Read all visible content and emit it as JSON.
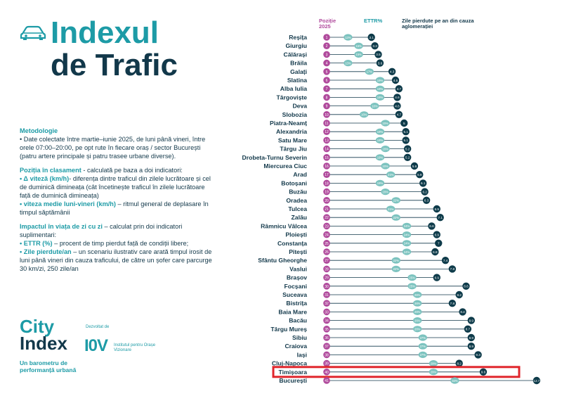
{
  "title": {
    "line1": "Indexul",
    "line2": "de Trafic"
  },
  "methodology": {
    "heading": "Metodologie",
    "text": "• Date colectate între martie–iunie 2025, de luni până vineri, între orele 07:00–20:00, pe opt rute în fiecare oraș / sector București (patru artere principale și patru trasee urbane diverse)."
  },
  "ranking": {
    "heading": "Poziția în clasament",
    "intro": " - calculată pe baza a doi indicatori:",
    "i1_label": "• Δ viteză (km/h)",
    "i1_text": "- diferența dintre traficul din zilele lucrătoare și cel de duminică dimineața (cât încetinește traficul în zilele lucrătoare față de duminică dimineața)",
    "i2_label": "• viteza medie luni-vineri (km/h)",
    "i2_text": " – ritmul general de deplasare în timpul săptămânii"
  },
  "impact": {
    "heading": "Impactul în viața de zi cu zi",
    "intro": " – calculat prin doi indicatori suplimentari:",
    "i1_label": "• ETTR (%)",
    "i1_text": " – procent de timp pierdut față de condiții libere;",
    "i2_label": "• Zile pierdute/an",
    "i2_text": " – un scenariu ilustrativ care arată timpul irosit de luni până vineri din cauza traficului, de către un șofer care parcurge 30 km/zi, 250 zile/an"
  },
  "branding": {
    "logo_l1": "City",
    "logo_l2": "Index",
    "tagline": "Un barometru de performanță urbană",
    "developed_by": "Dezvoltat de",
    "partner_mark": "I0V",
    "partner_name": "Institutul pentru Orașe Vizionare"
  },
  "colors": {
    "teal": "#1d9ba6",
    "navy": "#12384a",
    "purple": "#b04a9c",
    "ettr": "#7cc3bf",
    "days": "#0e3b4a",
    "highlight": "#e0262c"
  },
  "chart_data": {
    "type": "dot-range",
    "headers": {
      "position": "Poziție 2025",
      "ettr": "ETTR%",
      "days": "Zile pierdute pe an din cauza aglomerației"
    },
    "highlight": "Timișoara",
    "rows": [
      {
        "pos": 1,
        "city": "Reșița",
        "ettr": "13%",
        "days": 3.1
      },
      {
        "pos": 2,
        "city": "Giurgiu",
        "ettr": "15%",
        "days": 3.3
      },
      {
        "pos": 3,
        "city": "Călărași",
        "ettr": "15%",
        "days": 3.5
      },
      {
        "pos": 4,
        "city": "Brăila",
        "ettr": "13%",
        "days": 3.6
      },
      {
        "pos": 5,
        "city": "Galați",
        "ettr": "17%",
        "days": 4.3
      },
      {
        "pos": 6,
        "city": "Slatina",
        "ettr": "19%",
        "days": 4.5
      },
      {
        "pos": 7,
        "city": "Alba Iulia",
        "ettr": "19%",
        "days": 4.7
      },
      {
        "pos": 8,
        "city": "Târgoviște",
        "ettr": "19%",
        "days": 4.6
      },
      {
        "pos": 9,
        "city": "Deva",
        "ettr": "18%",
        "days": 4.6
      },
      {
        "pos": 10,
        "city": "Slobozia",
        "ettr": "16%",
        "days": 4.7
      },
      {
        "pos": 11,
        "city": "Piatra-Neamț",
        "ettr": "20%",
        "days": 5
      },
      {
        "pos": 12,
        "city": "Alexandria",
        "ettr": "19%",
        "days": 5.1
      },
      {
        "pos": 13,
        "city": "Satu Mare",
        "ettr": "19%",
        "days": 5.1
      },
      {
        "pos": 14,
        "city": "Târgu Jiu",
        "ettr": "20%",
        "days": 5.2
      },
      {
        "pos": 15,
        "city": "Drobeta-Turnu Severin",
        "ettr": "19%",
        "days": 5.2
      },
      {
        "pos": 16,
        "city": "Miercurea Ciuc",
        "ettr": "20%",
        "days": 5.6
      },
      {
        "pos": 17,
        "city": "Arad",
        "ettr": "21%",
        "days": 5.9
      },
      {
        "pos": 18,
        "city": "Botoșani",
        "ettr": "19%",
        "days": 6.1
      },
      {
        "pos": 19,
        "city": "Buzău",
        "ettr": "20%",
        "days": 6.2
      },
      {
        "pos": 20,
        "city": "Oradea",
        "ettr": "22%",
        "days": 6.3
      },
      {
        "pos": 21,
        "city": "Tulcea",
        "ettr": "21%",
        "days": 6.9
      },
      {
        "pos": 22,
        "city": "Zalău",
        "ettr": "22%",
        "days": 7.1
      },
      {
        "pos": 23,
        "city": "Râmnicu Vâlcea",
        "ettr": "24%",
        "days": 6.6
      },
      {
        "pos": 24,
        "city": "Ploiești",
        "ettr": "24%",
        "days": 6.9
      },
      {
        "pos": 25,
        "city": "Constanța",
        "ettr": "24%",
        "days": 7
      },
      {
        "pos": 26,
        "city": "Pitești",
        "ettr": "24%",
        "days": 6.8
      },
      {
        "pos": 27,
        "city": "Sfântu Gheorghe",
        "ettr": "22%",
        "days": 7.4
      },
      {
        "pos": 28,
        "city": "Vaslui",
        "ettr": "22%",
        "days": 7.8
      },
      {
        "pos": 29,
        "city": "Brașov",
        "ettr": "25%",
        "days": 6.9
      },
      {
        "pos": 30,
        "city": "Focșani",
        "ettr": "25%",
        "days": 8.6
      },
      {
        "pos": 31,
        "city": "Suceava",
        "ettr": "26%",
        "days": 8.2
      },
      {
        "pos": 32,
        "city": "Bistrița",
        "ettr": "26%",
        "days": 7.8
      },
      {
        "pos": 33,
        "city": "Baia Mare",
        "ettr": "26%",
        "days": 8.4
      },
      {
        "pos": 34,
        "city": "Bacău",
        "ettr": "26%",
        "days": 8.9
      },
      {
        "pos": 35,
        "city": "Târgu Mureș",
        "ettr": "26%",
        "days": 8.7
      },
      {
        "pos": 36,
        "city": "Sibiu",
        "ettr": "27%",
        "days": 8.9
      },
      {
        "pos": 37,
        "city": "Craiova",
        "ettr": "27%",
        "days": 8.9
      },
      {
        "pos": 38,
        "city": "Iași",
        "ettr": "27%",
        "days": 9.3
      },
      {
        "pos": 39,
        "city": "Cluj-Napoca",
        "ettr": "29%",
        "days": 8.2
      },
      {
        "pos": 40,
        "city": "Timișoara",
        "ettr": "29%",
        "days": 9.6
      },
      {
        "pos": 41,
        "city": "București",
        "ettr": "33%",
        "days": 12.7
      }
    ]
  }
}
